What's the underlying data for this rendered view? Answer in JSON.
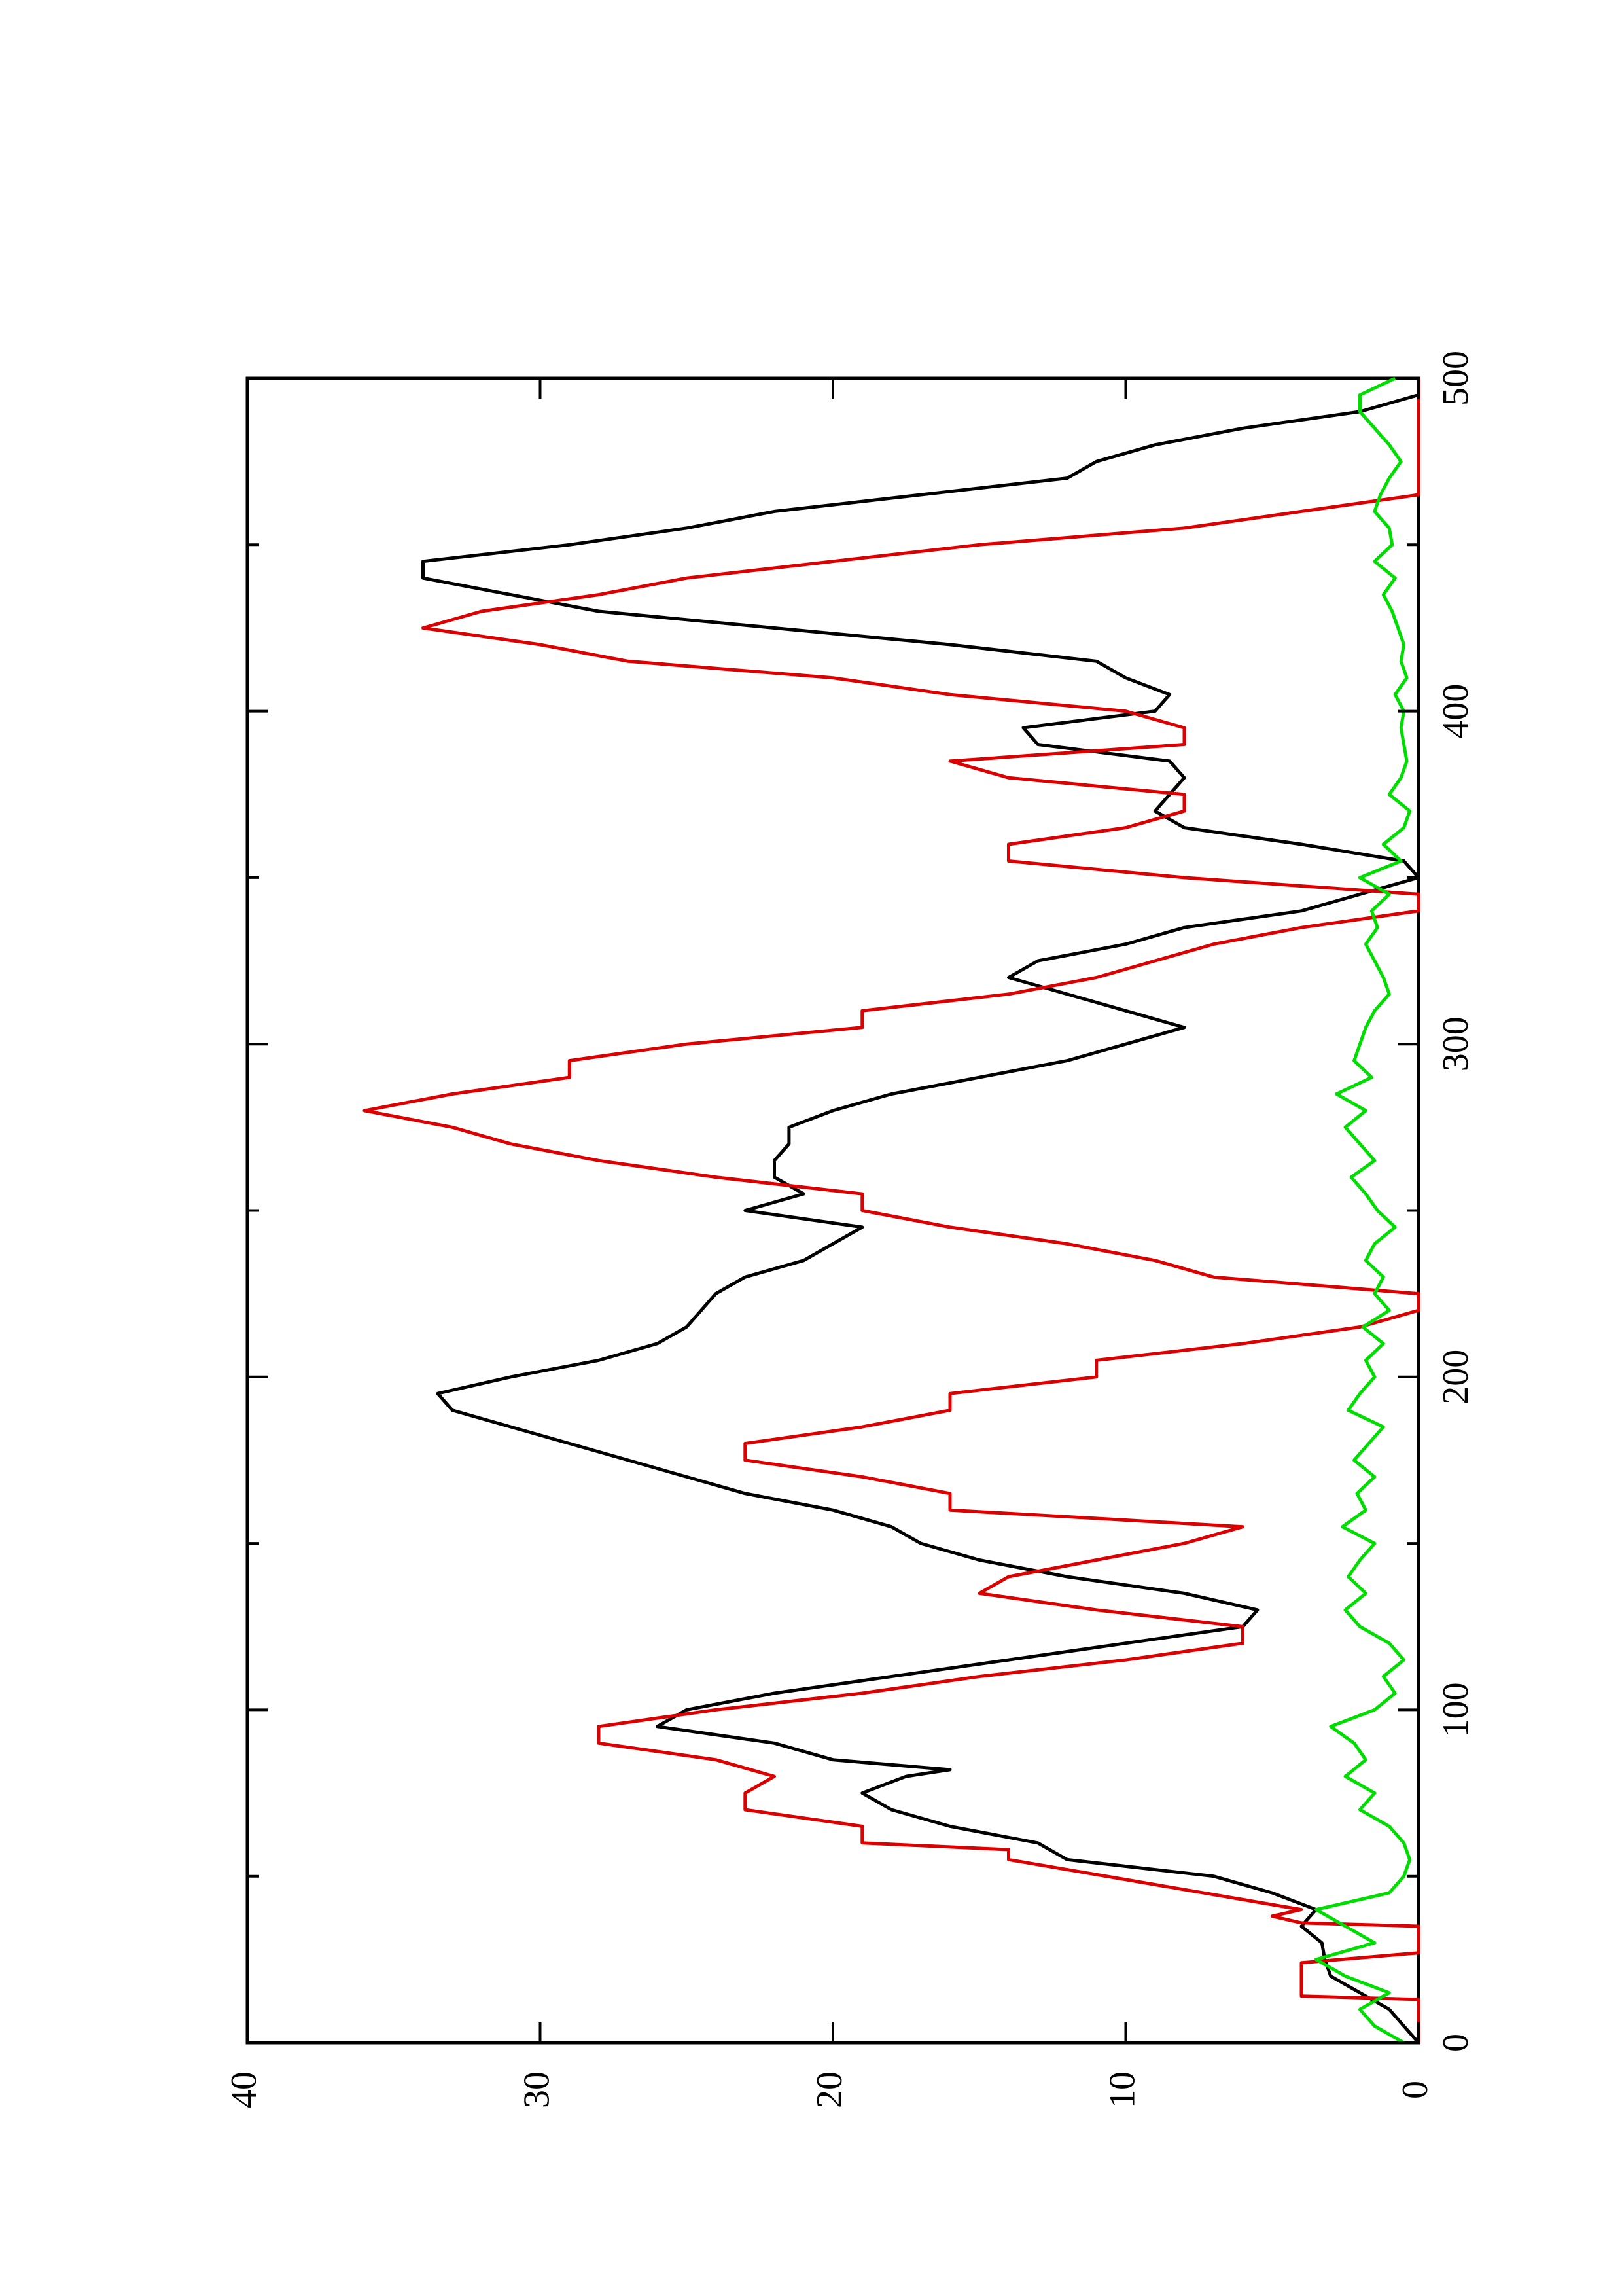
{
  "chart_data": {
    "type": "line",
    "orientation": "rotated 90 degrees counter-clockwise",
    "title": "",
    "xlabel": "",
    "ylabel": "",
    "xlim": [
      0,
      500
    ],
    "ylim": [
      0,
      40
    ],
    "x_ticks": [
      0,
      100,
      200,
      300,
      400,
      500
    ],
    "y_ticks": [
      0,
      10,
      20,
      30,
      40
    ],
    "x_minor_ticks": [
      50,
      150,
      250,
      350,
      450
    ],
    "y_minor_ticks": [],
    "grid": false,
    "legend": "none",
    "colors": {
      "black": "#000000",
      "red": "#dd0000",
      "green": "#00dd00"
    },
    "series": [
      {
        "color": "#000000",
        "style": "line",
        "x": [
          0,
          5,
          10,
          15,
          20,
          25,
          30,
          35,
          40,
          45,
          50,
          55,
          60,
          65,
          70,
          75,
          80,
          82,
          85,
          90,
          95,
          100,
          105,
          110,
          115,
          120,
          125,
          130,
          135,
          140,
          145,
          150,
          155,
          160,
          165,
          170,
          175,
          180,
          185,
          190,
          195,
          200,
          205,
          210,
          215,
          220,
          225,
          230,
          235,
          240,
          245,
          250,
          255,
          260,
          265,
          270,
          275,
          280,
          285,
          290,
          295,
          300,
          305,
          310,
          315,
          320,
          325,
          330,
          335,
          340,
          345,
          350,
          355,
          360,
          365,
          370,
          375,
          380,
          385,
          390,
          395,
          400,
          405,
          410,
          415,
          420,
          425,
          430,
          435,
          440,
          445,
          450,
          455,
          460,
          465,
          470,
          475,
          480,
          485,
          490,
          495,
          500
        ],
        "y": [
          0,
          0.5,
          1,
          2,
          3,
          3.2,
          3.3,
          4,
          3.5,
          5,
          7,
          12,
          13,
          16,
          18,
          19,
          17.5,
          16,
          20,
          22,
          26,
          25,
          22,
          18,
          14,
          10,
          6,
          5.5,
          8,
          12,
          15,
          17,
          18,
          20,
          23,
          25,
          27,
          29,
          31,
          33,
          33.5,
          31,
          28,
          26,
          25,
          24.5,
          24,
          23,
          21,
          20,
          19,
          23,
          21,
          22,
          22,
          21.5,
          21.5,
          20,
          18,
          15,
          12,
          10,
          8,
          10,
          12,
          14,
          13,
          10,
          8,
          4,
          2,
          0,
          0.5,
          4,
          8,
          9,
          8.5,
          8,
          8.5,
          13,
          13.5,
          9,
          8.5,
          10,
          11,
          16,
          22,
          28,
          31,
          34,
          34,
          29,
          25,
          22,
          17,
          12,
          11,
          9,
          6,
          2,
          0,
          0
        ]
      },
      {
        "color": "#dd0000",
        "style": "step-line",
        "x": [
          0,
          13,
          14,
          15,
          16,
          24,
          27,
          28,
          35,
          36,
          38,
          40,
          55,
          58,
          60,
          63,
          65,
          70,
          75,
          80,
          85,
          90,
          95,
          100,
          105,
          110,
          115,
          120,
          125,
          130,
          135,
          140,
          145,
          150,
          155,
          160,
          165,
          170,
          175,
          180,
          185,
          190,
          195,
          200,
          205,
          210,
          215,
          220,
          225,
          230,
          235,
          240,
          245,
          250,
          255,
          260,
          265,
          270,
          275,
          280,
          285,
          290,
          295,
          300,
          305,
          310,
          315,
          320,
          325,
          330,
          335,
          340,
          345,
          350,
          355,
          360,
          365,
          370,
          375,
          380,
          385,
          390,
          395,
          400,
          405,
          410,
          415,
          420,
          425,
          430,
          435,
          440,
          445,
          450,
          455,
          460,
          465,
          470,
          475,
          480,
          485,
          490,
          495,
          500
        ],
        "y": [
          0,
          0,
          4,
          4,
          4,
          4,
          0,
          0,
          0,
          4,
          5,
          4,
          14,
          14,
          19,
          19,
          19,
          23,
          23,
          22,
          24,
          28,
          28,
          24,
          19,
          15,
          10,
          6,
          6,
          11,
          15,
          14,
          11,
          8,
          6,
          16,
          16,
          19,
          23,
          23,
          19,
          16,
          16,
          11,
          11,
          6,
          2,
          0,
          0,
          7,
          9,
          12,
          16,
          19,
          19,
          24,
          28,
          31,
          33,
          36,
          33,
          29,
          29,
          25,
          19,
          19,
          14,
          11,
          9,
          7,
          4,
          0,
          0,
          8,
          14,
          14,
          10,
          8,
          8,
          14,
          16,
          8,
          8,
          10,
          16,
          20,
          27,
          30,
          34,
          32,
          28,
          25,
          20,
          15,
          8,
          4,
          0,
          0,
          0,
          0,
          0,
          0,
          0,
          0
        ]
      },
      {
        "color": "#00dd00",
        "style": "noise",
        "x": [
          0,
          5,
          10,
          15,
          20,
          25,
          30,
          35,
          40,
          45,
          50,
          55,
          60,
          65,
          70,
          75,
          80,
          85,
          90,
          95,
          100,
          105,
          110,
          115,
          120,
          125,
          130,
          135,
          140,
          145,
          150,
          155,
          160,
          165,
          170,
          175,
          180,
          185,
          190,
          195,
          200,
          205,
          210,
          215,
          220,
          225,
          230,
          235,
          240,
          245,
          250,
          255,
          260,
          265,
          270,
          275,
          280,
          285,
          290,
          295,
          300,
          305,
          310,
          315,
          320,
          325,
          330,
          335,
          340,
          345,
          350,
          355,
          360,
          365,
          370,
          375,
          380,
          385,
          390,
          395,
          400,
          405,
          410,
          415,
          420,
          425,
          430,
          435,
          440,
          445,
          450,
          455,
          460,
          465,
          470,
          475,
          480,
          485,
          490,
          495,
          500
        ],
        "y": [
          0.5,
          1.5,
          2,
          1,
          2.5,
          3.5,
          1.5,
          2.5,
          3.5,
          1,
          0.5,
          0.3,
          0.5,
          1,
          2,
          1.5,
          2.5,
          1.8,
          2.2,
          3,
          1.5,
          0.8,
          1.2,
          0.5,
          1,
          2,
          2.5,
          1.8,
          2.4,
          2,
          1.5,
          2.6,
          1.8,
          2.1,
          1.5,
          2.2,
          1.7,
          1.2,
          2.4,
          2,
          1.5,
          1.8,
          1.2,
          1.9,
          1,
          1.5,
          1.2,
          1.8,
          1.5,
          0.8,
          1.4,
          1.8,
          2.3,
          1.5,
          2,
          2.5,
          1.8,
          2.8,
          1.6,
          2.2,
          2,
          1.8,
          1.5,
          1,
          1.2,
          1.5,
          1.8,
          1.4,
          1.6,
          1,
          2,
          0.6,
          1.2,
          0.5,
          0.3,
          1,
          0.6,
          0.4,
          0.5,
          0.6,
          0.5,
          0.8,
          0.4,
          0.6,
          0.5,
          0.7,
          0.9,
          1.2,
          0.8,
          1.5,
          0.9,
          1,
          1.5,
          1.3,
          1,
          0.6,
          1,
          1.5,
          2,
          2,
          0.8
        ]
      }
    ]
  }
}
